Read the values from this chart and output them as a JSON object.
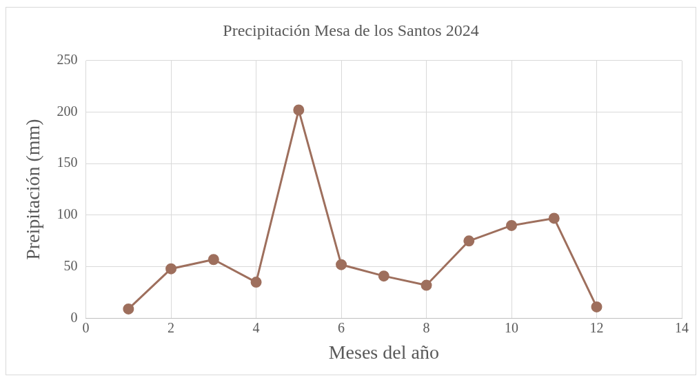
{
  "chart_data": {
    "type": "line",
    "title": "Precipitación Mesa de los Santos 2024",
    "xlabel": "Meses del año",
    "ylabel": "Preipitación (mm)",
    "x": [
      1,
      2,
      3,
      4,
      5,
      6,
      7,
      8,
      9,
      10,
      11,
      12
    ],
    "series": [
      {
        "color": "#9e6f5d",
        "values": [
          9,
          48,
          57,
          35,
          202,
          52,
          41,
          32,
          75,
          90,
          97,
          11
        ]
      }
    ],
    "xlim": [
      0,
      14
    ],
    "xticks": [
      0,
      2,
      4,
      6,
      8,
      10,
      12,
      14
    ],
    "ylim": [
      0,
      250
    ],
    "yticks": [
      0,
      50,
      100,
      150,
      200,
      250
    ],
    "grid": true,
    "legend": false,
    "marker": "circle",
    "line_style": "solid"
  }
}
